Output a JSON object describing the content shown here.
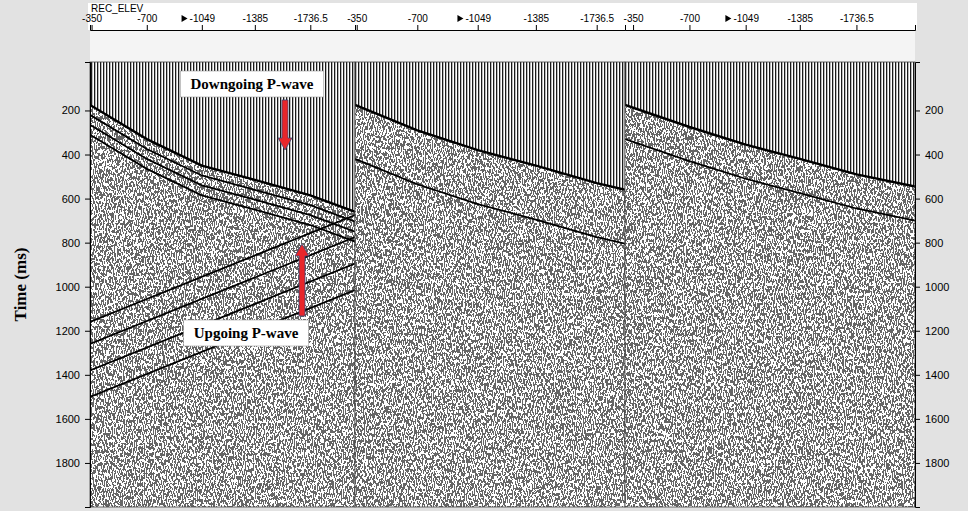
{
  "chart_data": [
    {
      "type": "line",
      "xlabel": "REC_ELEV",
      "ylabel": "Time (ms)",
      "xlim": [
        -340,
        -2020
      ],
      "xticks": [
        -350,
        -700,
        -1049,
        -1385,
        -1736.5
      ],
      "ylim": [
        -20,
        2000
      ],
      "yticks": [
        200,
        400,
        600,
        800,
        1000,
        1200,
        1400,
        1600,
        1800
      ],
      "annotations": [
        {
          "text": "Downgoing P-wave"
        },
        {
          "text": "Upgoing P-wave"
        }
      ],
      "series": [
        {
          "color": "#000000",
          "x": [
            -340,
            -700,
            -1049,
            -1385,
            -1736.5,
            -2020
          ],
          "values": [
            175,
            330,
            450,
            515,
            585,
            660
          ]
        },
        {
          "color": "#000000",
          "x": [
            -340,
            -700,
            -1049,
            -1385,
            -1736.5,
            -2020
          ],
          "values": [
            220,
            375,
            495,
            560,
            630,
            705
          ]
        },
        {
          "color": "#000000",
          "x": [
            -340,
            -700,
            -1049,
            -1385,
            -1736.5,
            -2020
          ],
          "values": [
            265,
            420,
            540,
            605,
            675,
            750
          ]
        },
        {
          "color": "#000000",
          "x": [
            -340,
            -700,
            -1049,
            -1385,
            -1736.5,
            -2020
          ],
          "values": [
            310,
            465,
            585,
            650,
            720,
            795
          ]
        },
        {
          "color": "#000000",
          "x": [
            -340,
            -2020
          ],
          "values": [
            1160,
            675
          ]
        },
        {
          "color": "#000000",
          "x": [
            -340,
            -2020
          ],
          "values": [
            1260,
            775
          ]
        },
        {
          "color": "#000000",
          "x": [
            -340,
            -2020
          ],
          "values": [
            1380,
            895
          ]
        },
        {
          "color": "#000000",
          "x": [
            -340,
            -2020
          ],
          "values": [
            1500,
            1015
          ]
        }
      ]
    },
    {
      "type": "line",
      "tick_labels": "x",
      "xlim": [
        -340,
        -1900
      ],
      "xticks": [
        -350,
        -700,
        -1049,
        -1385,
        -1736.5
      ],
      "ylim": [
        -20,
        2000
      ],
      "series": [
        {
          "color": "#000000",
          "x": [
            -340,
            -700,
            -1049,
            -1385,
            -1736.5,
            -1900
          ],
          "values": [
            175,
            290,
            380,
            450,
            530,
            560
          ]
        },
        {
          "color": "#000000",
          "x": [
            -340,
            -700,
            -1049,
            -1385,
            -1736.5,
            -1900
          ],
          "values": [
            420,
            535,
            625,
            695,
            775,
            805
          ]
        }
      ]
    },
    {
      "type": "line",
      "xlim": [
        -300,
        -2100
      ],
      "xticks": [
        -350,
        -700,
        -1049,
        -1385,
        -1736.5
      ],
      "ylim": [
        -20,
        2000
      ],
      "yticks": [
        200,
        400,
        600,
        800,
        1000,
        1200,
        1400,
        1600,
        1800
      ],
      "series": [
        {
          "color": "#000000",
          "x": [
            -300,
            -700,
            -1049,
            -1385,
            -1736.5,
            -2100
          ],
          "values": [
            175,
            275,
            355,
            420,
            490,
            545
          ]
        },
        {
          "color": "#000000",
          "x": [
            -300,
            -700,
            -1049,
            -1385,
            -1736.5,
            -2100
          ],
          "values": [
            330,
            430,
            510,
            575,
            645,
            700
          ]
        }
      ]
    }
  ]
}
